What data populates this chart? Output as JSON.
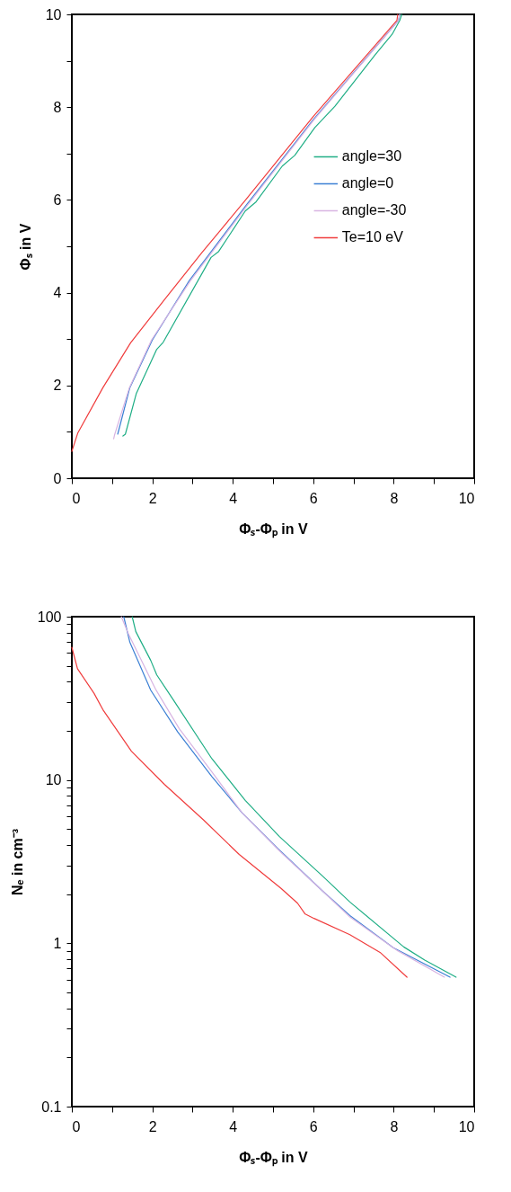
{
  "chart_data": [
    {
      "type": "line",
      "xlabel": "Φₛ-Φₚ in V",
      "ylabel": "Φₛ in V",
      "xlim": [
        0,
        10
      ],
      "ylim": [
        0,
        10
      ],
      "xticks": [
        0,
        {
          "value": 1,
          "label": null
        },
        2,
        {
          "value": 3,
          "label": null
        },
        4,
        {
          "value": 5,
          "label": null
        },
        6,
        {
          "value": 7,
          "label": null
        },
        8,
        {
          "value": 9,
          "label": null
        },
        10
      ],
      "yticks": [
        0,
        {
          "value": 1,
          "label": null
        },
        2,
        {
          "value": 3,
          "label": null
        },
        4,
        {
          "value": 5,
          "label": null
        },
        6,
        {
          "value": 7,
          "label": null
        },
        8,
        {
          "value": 9,
          "label": null
        },
        10
      ],
      "legend": "right",
      "grid": false,
      "series": [
        {
          "name": "angle=30",
          "color": "#1fae85",
          "x": [
            1.27,
            1.33,
            1.6,
            2.11,
            2.27,
            3.46,
            3.65,
            4.31,
            4.58,
            5.23,
            5.54,
            6.04,
            6.54,
            7.54,
            7.96,
            8.15,
            8.2
          ],
          "values": [
            0.91,
            0.95,
            1.82,
            2.78,
            2.93,
            4.76,
            4.89,
            5.76,
            5.96,
            6.73,
            6.96,
            7.56,
            8.02,
            9.13,
            9.57,
            9.87,
            10
          ]
        },
        {
          "name": "angle=0",
          "color": "#3b7fd4",
          "x": [
            1.14,
            1.44,
            2.0,
            2.92,
            4.31,
            6.0,
            8.12,
            8.15
          ],
          "values": [
            0.95,
            1.95,
            2.98,
            4.26,
            5.86,
            7.73,
            9.87,
            10
          ]
        },
        {
          "name": "angle=-30",
          "color": "#d8b4e2",
          "x": [
            1.04,
            1.06,
            1.43,
            1.98,
            2.95,
            4.34,
            6.02,
            8.12,
            8.15
          ],
          "values": [
            0.85,
            0.93,
            1.95,
            2.98,
            4.26,
            5.86,
            7.73,
            9.87,
            10
          ]
        },
        {
          "name": "Te=10 eV",
          "color": "#f03c3c",
          "x": [
            0,
            0.15,
            0.77,
            1.46,
            2.31,
            3.23,
            4.31,
            6.0,
            8.08,
            8.1
          ],
          "values": [
            0.58,
            0.98,
            1.95,
            2.92,
            3.86,
            4.86,
            5.99,
            7.8,
            9.87,
            10
          ]
        }
      ]
    },
    {
      "type": "line",
      "xlabel": "Φₛ-Φₚ in V",
      "ylabel": "Nₑ in cm⁻³",
      "xlim": [
        0,
        10
      ],
      "ylim": [
        0.1,
        100
      ],
      "log": "y",
      "xticks": [
        0,
        {
          "value": 1,
          "label": null
        },
        2,
        {
          "value": 3,
          "label": null
        },
        4,
        {
          "value": 5,
          "label": null
        },
        6,
        {
          "value": 7,
          "label": null
        },
        8,
        {
          "value": 9,
          "label": null
        },
        10
      ],
      "yticks": [
        0.1,
        {
          "value": 0.2,
          "label": null
        },
        {
          "value": 0.3,
          "label": null
        },
        {
          "value": 0.4,
          "label": null
        },
        {
          "value": 0.5,
          "label": null
        },
        {
          "value": 0.6,
          "label": null
        },
        {
          "value": 0.7,
          "label": null
        },
        {
          "value": 0.8,
          "label": null
        },
        {
          "value": 0.9,
          "label": null
        },
        1,
        {
          "value": 2,
          "label": null
        },
        {
          "value": 3,
          "label": null
        },
        {
          "value": 4,
          "label": null
        },
        {
          "value": 5,
          "label": null
        },
        {
          "value": 6,
          "label": null
        },
        {
          "value": 7,
          "label": null
        },
        {
          "value": 8,
          "label": null
        },
        {
          "value": 9,
          "label": null
        },
        10,
        {
          "value": 20,
          "label": null
        },
        {
          "value": 30,
          "label": null
        },
        {
          "value": 40,
          "label": null
        },
        {
          "value": 50,
          "label": null
        },
        {
          "value": 60,
          "label": null
        },
        {
          "value": 70,
          "label": null
        },
        {
          "value": 80,
          "label": null
        },
        {
          "value": 90,
          "label": null
        },
        100
      ],
      "legend": "right",
      "grid": false,
      "series": [
        {
          "name": "angle=30",
          "color": "#1fae85",
          "x": [
            1.5,
            1.59,
            1.96,
            2.11,
            2.52,
            3.48,
            4.31,
            5.16,
            6.24,
            6.91,
            8.25,
            8.77,
            9.55
          ],
          "values": [
            100,
            81,
            54,
            44,
            31,
            13.5,
            7.5,
            4.5,
            2.57,
            1.79,
            0.95,
            0.79,
            0.62
          ]
        },
        {
          "name": "angle=0",
          "color": "#3b7fd4",
          "x": [
            1.29,
            1.44,
            1.96,
            2.63,
            3.48,
            4.23,
            5.12,
            6.24,
            6.91,
            7.99,
            9.4
          ],
          "values": [
            100,
            70,
            35.5,
            19.7,
            10.5,
            6.3,
            3.8,
            2.08,
            1.48,
            0.94,
            0.62
          ]
        },
        {
          "name": "angle=-30",
          "color": "#d8b4e2",
          "x": [
            1.23,
            1.41,
            2.08,
            2.67,
            3.48,
            4.23,
            5.2,
            6.24,
            6.91,
            8.1,
            9.26
          ],
          "values": [
            100,
            78,
            36,
            20.6,
            11.2,
            6.3,
            3.6,
            2.08,
            1.45,
            0.9,
            0.62
          ]
        },
        {
          "name": "Te=10 eV",
          "color": "#f03c3c",
          "x": [
            0.0,
            0.14,
            0.55,
            0.77,
            1.48,
            2.3,
            3.27,
            4.16,
            5.2,
            5.61,
            5.8,
            6.02,
            6.91,
            7.66,
            8.33
          ],
          "values": [
            65,
            48,
            34,
            27,
            15,
            9.4,
            5.7,
            3.5,
            2.17,
            1.76,
            1.51,
            1.42,
            1.13,
            0.88,
            0.62
          ]
        }
      ]
    }
  ]
}
